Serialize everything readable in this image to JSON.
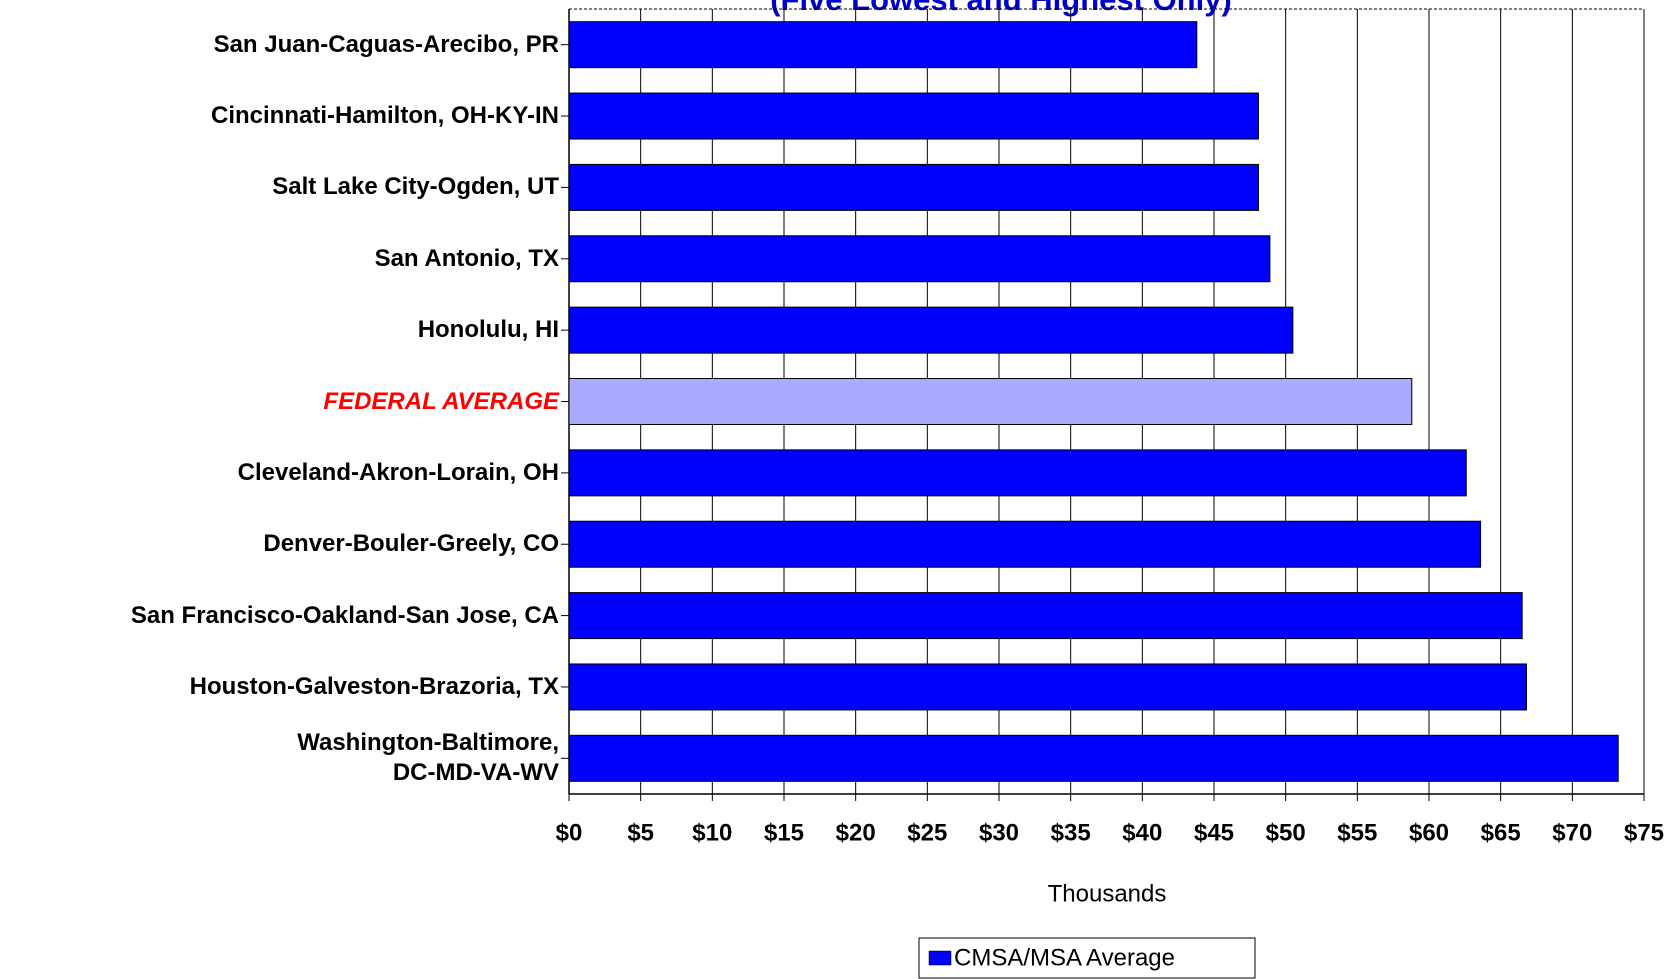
{
  "chart_data": {
    "type": "bar",
    "orientation": "horizontal",
    "subtitle": "(Five Lowest and Highest Only)",
    "categories": [
      "San Juan-Caguas-Arecibo, PR",
      "Cincinnati-Hamilton, OH-KY-IN",
      "Salt Lake City-Ogden, UT",
      "San Antonio, TX",
      "Honolulu, HI",
      "FEDERAL AVERAGE",
      "Cleveland-Akron-Lorain, OH",
      "Denver-Bouler-Greely, CO",
      "San Francisco-Oakland-San Jose, CA",
      "Houston-Galveston-Brazoria, TX",
      "Washington-Baltimore,\nDC-MD-VA-WV"
    ],
    "series": [
      {
        "name": "CMSA/MSA Average",
        "color": "#0000ff",
        "values": [
          43.8,
          48.1,
          48.1,
          48.9,
          50.5,
          58.8,
          62.6,
          63.6,
          66.5,
          66.8,
          73.2
        ]
      }
    ],
    "bar_colors": [
      "#0000ff",
      "#0000ff",
      "#0000ff",
      "#0000ff",
      "#0000ff",
      "#aaaaff",
      "#0000ff",
      "#0000ff",
      "#0000ff",
      "#0000ff",
      "#0000ff"
    ],
    "label_colors": [
      "#000000",
      "#000000",
      "#000000",
      "#000000",
      "#000000",
      "#ff0000",
      "#000000",
      "#000000",
      "#000000",
      "#000000",
      "#000000"
    ],
    "xlabel": "Thousands",
    "xlim": [
      0,
      75
    ],
    "xticks": [
      {
        "value": 0,
        "label": "$0"
      },
      {
        "value": 5,
        "label": "$5"
      },
      {
        "value": 10,
        "label": "$10"
      },
      {
        "value": 15,
        "label": "$15"
      },
      {
        "value": 20,
        "label": "$20"
      },
      {
        "value": 25,
        "label": "$25"
      },
      {
        "value": 30,
        "label": "$30"
      },
      {
        "value": 35,
        "label": "$35"
      },
      {
        "value": 40,
        "label": "$40"
      },
      {
        "value": 45,
        "label": "$45"
      },
      {
        "value": 50,
        "label": "$50"
      },
      {
        "value": 55,
        "label": "$55"
      },
      {
        "value": 60,
        "label": "$60"
      },
      {
        "value": 65,
        "label": "$65"
      },
      {
        "value": 70,
        "label": "$70"
      },
      {
        "value": 75,
        "label": "$75"
      }
    ],
    "grid": true,
    "legend": "bottom"
  }
}
